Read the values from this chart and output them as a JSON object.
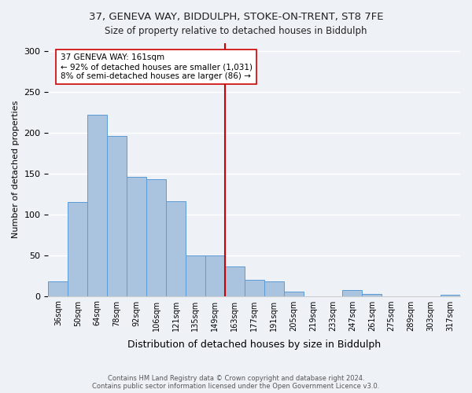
{
  "title_line1": "37, GENEVA WAY, BIDDULPH, STOKE-ON-TRENT, ST8 7FE",
  "title_line2": "Size of property relative to detached houses in Biddulph",
  "xlabel": "Distribution of detached houses by size in Biddulph",
  "ylabel": "Number of detached properties",
  "bar_labels": [
    "36sqm",
    "50sqm",
    "64sqm",
    "78sqm",
    "92sqm",
    "106sqm",
    "121sqm",
    "135sqm",
    "149sqm",
    "163sqm",
    "177sqm",
    "191sqm",
    "205sqm",
    "219sqm",
    "233sqm",
    "247sqm",
    "261sqm",
    "275sqm",
    "289sqm",
    "303sqm",
    "317sqm"
  ],
  "bar_values": [
    18,
    115,
    222,
    196,
    146,
    143,
    116,
    50,
    50,
    36,
    20,
    18,
    5,
    0,
    0,
    7,
    2,
    0,
    0,
    0,
    1
  ],
  "bar_color": "#aac4e0",
  "bar_edge_color": "#5b9bd5",
  "annotation_title": "37 GENEVA WAY: 161sqm",
  "annotation_line1": "← 92% of detached houses are smaller (1,031)",
  "annotation_line2": "8% of semi-detached houses are larger (86) →",
  "ref_line_x": 9,
  "ref_line_color": "#cc0000",
  "ylim": [
    0,
    310
  ],
  "yticks": [
    0,
    50,
    100,
    150,
    200,
    250,
    300
  ],
  "footnote_line1": "Contains HM Land Registry data © Crown copyright and database right 2024.",
  "footnote_line2": "Contains public sector information licensed under the Open Government Licence v3.0.",
  "bg_color": "#eef2f7"
}
